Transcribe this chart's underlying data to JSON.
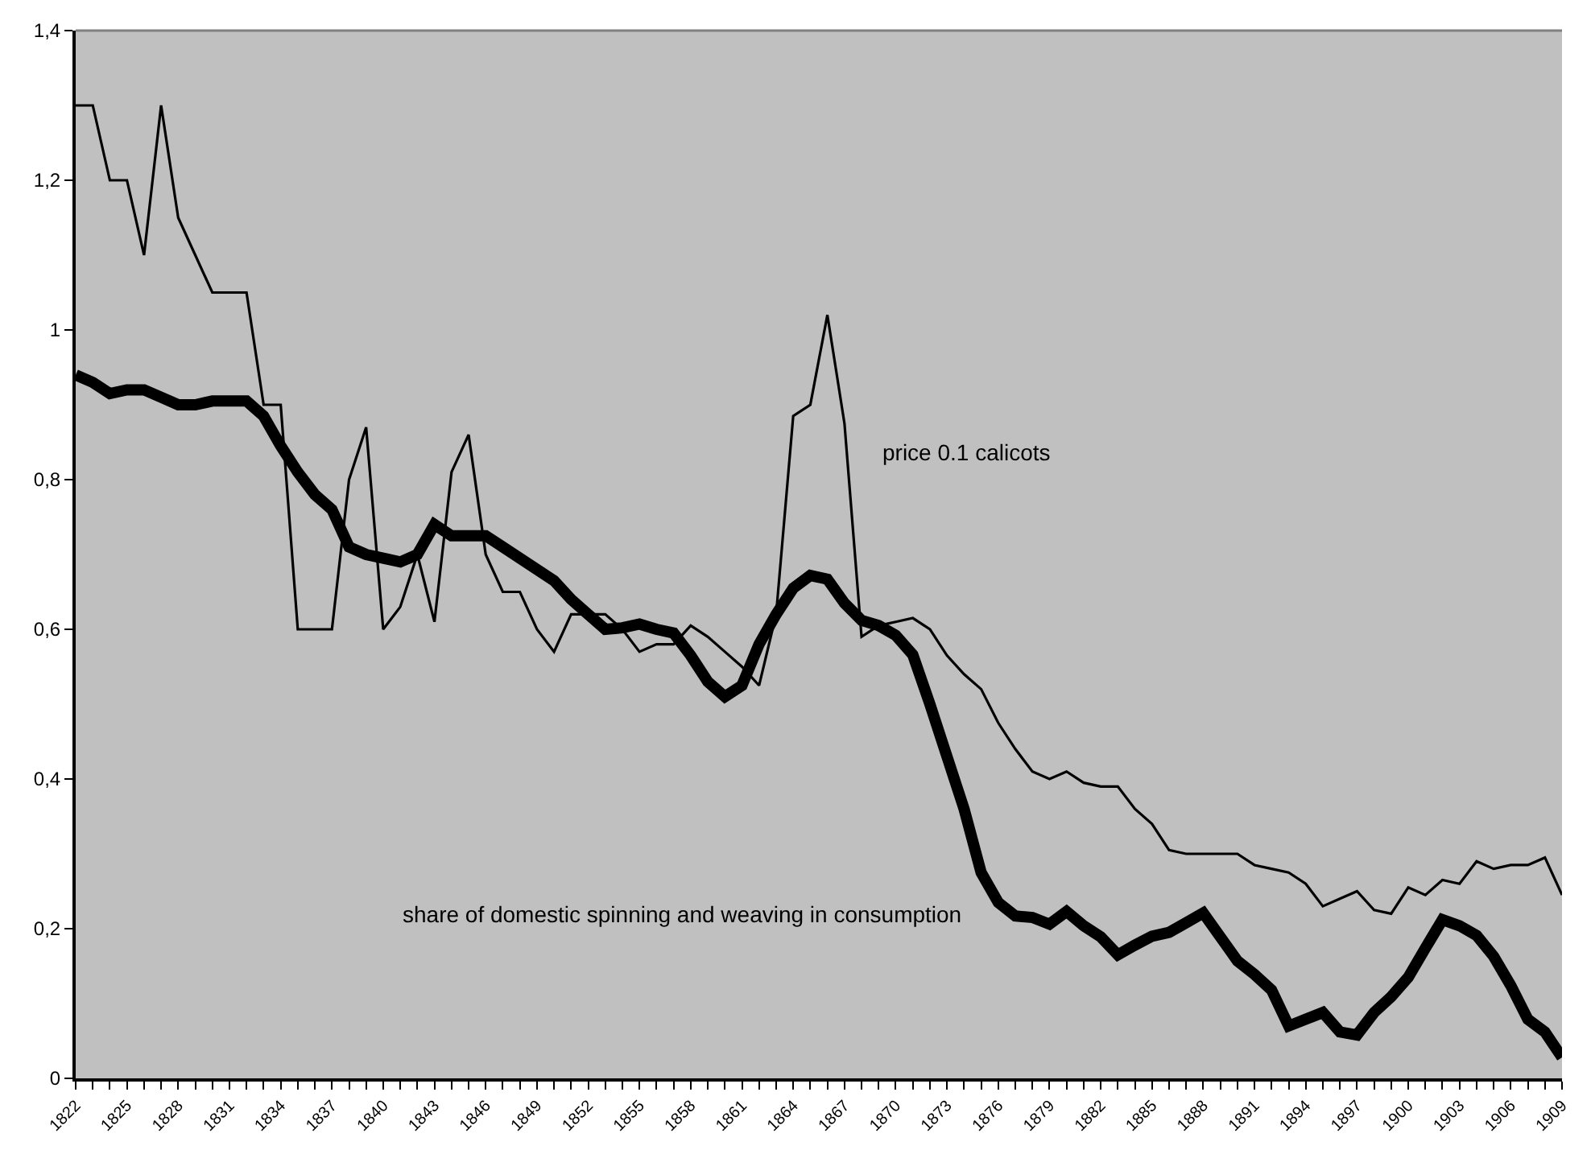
{
  "chart_data": {
    "type": "line",
    "x": [
      1822,
      1823,
      1824,
      1825,
      1826,
      1827,
      1828,
      1829,
      1830,
      1831,
      1832,
      1833,
      1834,
      1835,
      1836,
      1837,
      1838,
      1839,
      1840,
      1841,
      1842,
      1843,
      1844,
      1845,
      1846,
      1847,
      1848,
      1849,
      1850,
      1851,
      1852,
      1853,
      1854,
      1855,
      1856,
      1857,
      1858,
      1859,
      1860,
      1861,
      1862,
      1863,
      1864,
      1865,
      1866,
      1867,
      1868,
      1869,
      1870,
      1871,
      1872,
      1873,
      1874,
      1875,
      1876,
      1877,
      1878,
      1879,
      1880,
      1881,
      1882,
      1883,
      1884,
      1885,
      1886,
      1887,
      1888,
      1889,
      1890,
      1891,
      1892,
      1893,
      1894,
      1895,
      1896,
      1897,
      1898,
      1899,
      1900,
      1901,
      1902,
      1903,
      1904,
      1905,
      1906,
      1907,
      1908,
      1909
    ],
    "series": [
      {
        "name": "price 0.1 calicots",
        "color": "#000000",
        "values": [
          1.3,
          1.3,
          1.2,
          1.2,
          1.1,
          1.3,
          1.15,
          1.1,
          1.05,
          1.05,
          1.05,
          0.9,
          0.9,
          0.6,
          0.6,
          0.6,
          0.8,
          0.87,
          0.6,
          0.63,
          0.7,
          0.61,
          0.81,
          0.86,
          0.7,
          0.65,
          0.65,
          0.6,
          0.57,
          0.62,
          0.62,
          0.62,
          0.6,
          0.57,
          0.58,
          0.58,
          0.605,
          0.59,
          0.57,
          0.55,
          0.525,
          0.62,
          0.885,
          0.9,
          1.02,
          0.875,
          0.59,
          0.605,
          0.61,
          0.615,
          0.6,
          0.565,
          0.54,
          0.52,
          0.475,
          0.44,
          0.41,
          0.4,
          0.41,
          0.395,
          0.39,
          0.39,
          0.36,
          0.34,
          0.305,
          0.3,
          0.3,
          0.3,
          0.3,
          0.285,
          0.28,
          0.275,
          0.26,
          0.23,
          0.24,
          0.25,
          0.225,
          0.22,
          0.255,
          0.245,
          0.265,
          0.26,
          0.29,
          0.28,
          0.285,
          0.285,
          0.295,
          0.245
        ]
      },
      {
        "name": "share of domestic spinning and weaving in consumption",
        "color": "#000000",
        "values": [
          0.94,
          0.93,
          0.915,
          0.92,
          0.92,
          0.91,
          0.9,
          0.9,
          0.905,
          0.905,
          0.905,
          0.885,
          0.845,
          0.81,
          0.78,
          0.76,
          0.71,
          0.7,
          0.695,
          0.69,
          0.7,
          0.74,
          0.725,
          0.725,
          0.725,
          0.71,
          0.695,
          0.68,
          0.665,
          0.64,
          0.62,
          0.6,
          0.602,
          0.607,
          0.6,
          0.595,
          0.565,
          0.53,
          0.51,
          0.525,
          0.58,
          0.62,
          0.655,
          0.672,
          0.667,
          0.635,
          0.612,
          0.605,
          0.592,
          0.566,
          0.5,
          0.43,
          0.36,
          0.275,
          0.235,
          0.217,
          0.215,
          0.206,
          0.223,
          0.204,
          0.189,
          0.165,
          0.178,
          0.19,
          0.195,
          0.208,
          0.221,
          0.189,
          0.157,
          0.139,
          0.118,
          0.07,
          0.079,
          0.088,
          0.062,
          0.058,
          0.088,
          0.109,
          0.135,
          0.174,
          0.212,
          0.204,
          0.191,
          0.163,
          0.124,
          0.079,
          0.062,
          0.028
        ]
      }
    ],
    "xlim": [
      1822,
      1909
    ],
    "xticks": [
      1822,
      {
        "value": 1823,
        "label": null
      },
      {
        "value": 1824,
        "label": null
      },
      1825,
      {
        "value": 1826,
        "label": null
      },
      {
        "value": 1827,
        "label": null
      },
      1828,
      {
        "value": 1829,
        "label": null
      },
      {
        "value": 1830,
        "label": null
      },
      1831,
      {
        "value": 1832,
        "label": null
      },
      {
        "value": 1833,
        "label": null
      },
      1834,
      {
        "value": 1835,
        "label": null
      },
      {
        "value": 1836,
        "label": null
      },
      1837,
      {
        "value": 1838,
        "label": null
      },
      {
        "value": 1839,
        "label": null
      },
      1840,
      {
        "value": 1841,
        "label": null
      },
      {
        "value": 1842,
        "label": null
      },
      1843,
      {
        "value": 1844,
        "label": null
      },
      {
        "value": 1845,
        "label": null
      },
      1846,
      {
        "value": 1847,
        "label": null
      },
      {
        "value": 1848,
        "label": null
      },
      1849,
      {
        "value": 1850,
        "label": null
      },
      {
        "value": 1851,
        "label": null
      },
      1852,
      {
        "value": 1853,
        "label": null
      },
      {
        "value": 1854,
        "label": null
      },
      1855,
      {
        "value": 1856,
        "label": null
      },
      {
        "value": 1857,
        "label": null
      },
      1858,
      {
        "value": 1859,
        "label": null
      },
      {
        "value": 1860,
        "label": null
      },
      1861,
      {
        "value": 1862,
        "label": null
      },
      {
        "value": 1863,
        "label": null
      },
      1864,
      {
        "value": 1865,
        "label": null
      },
      {
        "value": 1866,
        "label": null
      },
      1867,
      {
        "value": 1868,
        "label": null
      },
      {
        "value": 1869,
        "label": null
      },
      1870,
      {
        "value": 1871,
        "label": null
      },
      {
        "value": 1872,
        "label": null
      },
      1873,
      {
        "value": 1874,
        "label": null
      },
      {
        "value": 1875,
        "label": null
      },
      1876,
      {
        "value": 1877,
        "label": null
      },
      {
        "value": 1878,
        "label": null
      },
      1879,
      {
        "value": 1880,
        "label": null
      },
      {
        "value": 1881,
        "label": null
      },
      1882,
      {
        "value": 1883,
        "label": null
      },
      {
        "value": 1884,
        "label": null
      },
      1885,
      {
        "value": 1886,
        "label": null
      },
      {
        "value": 1887,
        "label": null
      },
      1888,
      {
        "value": 1889,
        "label": null
      },
      {
        "value": 1890,
        "label": null
      },
      1891,
      {
        "value": 1892,
        "label": null
      },
      {
        "value": 1893,
        "label": null
      },
      1894,
      {
        "value": 1895,
        "label": null
      },
      {
        "value": 1896,
        "label": null
      },
      1897,
      {
        "value": 1898,
        "label": null
      },
      {
        "value": 1899,
        "label": null
      },
      1900,
      {
        "value": 1901,
        "label": null
      },
      {
        "value": 1902,
        "label": null
      },
      1903,
      {
        "value": 1904,
        "label": null
      },
      {
        "value": 1905,
        "label": null
      },
      1906,
      {
        "value": 1907,
        "label": null
      },
      {
        "value": 1908,
        "label": null
      },
      1909
    ],
    "ylim": [
      0,
      1.4
    ],
    "yticks": [
      0,
      {
        "value": 0.2,
        "label": "0,2"
      },
      {
        "value": 0.4,
        "label": "0,4"
      },
      {
        "value": 0.6,
        "label": "0,6"
      },
      {
        "value": 0.8,
        "label": "0,8"
      },
      1,
      {
        "value": 1.2,
        "label": "1,2"
      },
      {
        "value": 1.4,
        "label": "1,4"
      }
    ],
    "grid": false,
    "legend": false,
    "marker": "none",
    "line_style": "solid"
  }
}
